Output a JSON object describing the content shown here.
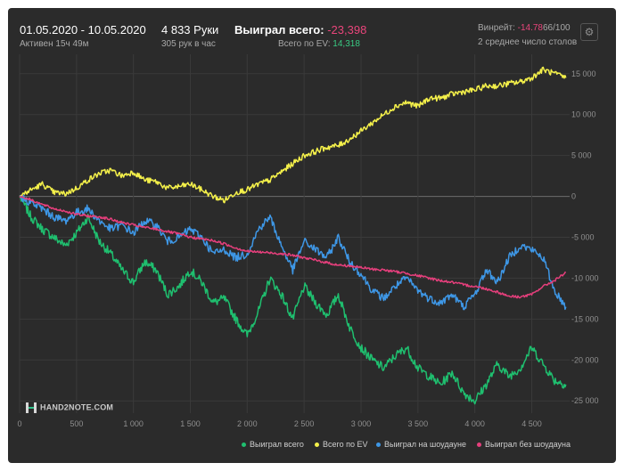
{
  "header": {
    "date_range": "01.05.2020 - 10.05.2020",
    "active": "Активен 15ч 49м",
    "hands": "4 833 Руки",
    "per_hour": "305 рук в час",
    "won_label": "Выиграл всего:",
    "won_value": "-23,398",
    "ev_label": "Всего по EV:",
    "ev_value": "14,318",
    "winrate_label": "Винрейт:",
    "winrate_value": "-14.78",
    "winrate_unit": "66/100",
    "tables": "2 среднее число столов"
  },
  "logo_text": "HAND2NOTE.COM",
  "settings_icon": "gear-icon",
  "colors": {
    "won": "#1fbf6f",
    "ev": "#f4f04a",
    "showdown": "#3e97e6",
    "non_showdown": "#e63f7c",
    "background": "#2b2b2b",
    "gridline": "#3a3a3a"
  },
  "chart_data": {
    "type": "line",
    "x_ticks": [
      "0",
      "500",
      "1 000",
      "1 500",
      "2 000",
      "2 500",
      "3 000",
      "3 500",
      "4 000",
      "4 500"
    ],
    "y_ticks": [
      "15 000",
      "10 000",
      "5 000",
      "0",
      "-5 000",
      "-10 000",
      "-15 000",
      "-20 000",
      "-25 000"
    ],
    "xlim": [
      0,
      4833
    ],
    "ylim": [
      -26500,
      16500
    ],
    "grid": true,
    "legend_position": "bottom",
    "series": [
      {
        "name": "Выиграл всего",
        "color": "#1fbf6f",
        "x": [
          0,
          100,
          200,
          300,
          400,
          500,
          600,
          700,
          800,
          900,
          1000,
          1100,
          1200,
          1300,
          1400,
          1500,
          1600,
          1700,
          1800,
          1900,
          2000,
          2100,
          2200,
          2300,
          2400,
          2500,
          2600,
          2700,
          2800,
          2900,
          3000,
          3100,
          3200,
          3300,
          3400,
          3500,
          3600,
          3700,
          3800,
          3900,
          4000,
          4100,
          4200,
          4300,
          4400,
          4500,
          4600,
          4700,
          4800
        ],
        "values": [
          0,
          -2500,
          -4000,
          -5000,
          -6000,
          -4500,
          -2500,
          -5500,
          -7000,
          -9000,
          -10500,
          -8000,
          -9000,
          -12000,
          -11000,
          -9000,
          -10500,
          -13000,
          -12500,
          -15000,
          -17000,
          -14000,
          -10000,
          -12000,
          -15000,
          -11000,
          -13000,
          -14500,
          -12000,
          -16000,
          -18500,
          -20000,
          -21000,
          -19500,
          -18500,
          -21000,
          -22000,
          -23000,
          -21500,
          -24000,
          -25000,
          -23000,
          -20500,
          -22000,
          -21000,
          -18500,
          -20500,
          -22500,
          -23000
        ]
      },
      {
        "name": "Всего по EV",
        "color": "#f4f04a",
        "x": [
          0,
          100,
          200,
          300,
          400,
          500,
          600,
          700,
          800,
          900,
          1000,
          1100,
          1200,
          1300,
          1400,
          1500,
          1600,
          1700,
          1800,
          1900,
          2000,
          2100,
          2200,
          2300,
          2400,
          2500,
          2600,
          2700,
          2800,
          2900,
          3000,
          3100,
          3200,
          3300,
          3400,
          3500,
          3600,
          3700,
          3800,
          3900,
          4000,
          4100,
          4200,
          4300,
          4400,
          4500,
          4600,
          4700,
          4800
        ],
        "values": [
          0,
          800,
          1500,
          500,
          300,
          1000,
          2000,
          2800,
          3200,
          2500,
          3000,
          2000,
          1800,
          1000,
          1200,
          1500,
          800,
          0,
          -500,
          500,
          800,
          1500,
          2000,
          3000,
          4000,
          5000,
          5500,
          6000,
          6200,
          7000,
          8000,
          9000,
          10000,
          11000,
          11500,
          11000,
          12000,
          12000,
          12500,
          12800,
          13000,
          13500,
          13500,
          13800,
          14000,
          14500,
          15500,
          15000,
          14500
        ]
      },
      {
        "name": "Выиграл на шоудауне",
        "color": "#3e97e6",
        "x": [
          0,
          100,
          200,
          300,
          400,
          500,
          600,
          700,
          800,
          900,
          1000,
          1100,
          1200,
          1300,
          1400,
          1500,
          1600,
          1700,
          1800,
          1900,
          2000,
          2100,
          2200,
          2300,
          2400,
          2500,
          2600,
          2700,
          2800,
          2900,
          3000,
          3100,
          3200,
          3300,
          3400,
          3500,
          3600,
          3700,
          3800,
          3900,
          4000,
          4100,
          4200,
          4300,
          4400,
          4500,
          4600,
          4700,
          4800
        ],
        "values": [
          0,
          -800,
          -1500,
          -2500,
          -3000,
          -2000,
          -1500,
          -3000,
          -4000,
          -3500,
          -4500,
          -3000,
          -3500,
          -5500,
          -5000,
          -4000,
          -5000,
          -7000,
          -6500,
          -7500,
          -7000,
          -4000,
          -2500,
          -6000,
          -9000,
          -5500,
          -6500,
          -7500,
          -5000,
          -8000,
          -9500,
          -11500,
          -12500,
          -11000,
          -10000,
          -11500,
          -12500,
          -13000,
          -12000,
          -13500,
          -12000,
          -9000,
          -10500,
          -7500,
          -6000,
          -6500,
          -7500,
          -11500,
          -13500
        ]
      },
      {
        "name": "Выиграл без шоудауна",
        "color": "#e63f7c",
        "x": [
          0,
          100,
          200,
          300,
          400,
          500,
          600,
          700,
          800,
          900,
          1000,
          1100,
          1200,
          1300,
          1400,
          1500,
          1600,
          1700,
          1800,
          1900,
          2000,
          2100,
          2200,
          2300,
          2400,
          2500,
          2600,
          2700,
          2800,
          2900,
          3000,
          3100,
          3200,
          3300,
          3400,
          3500,
          3600,
          3700,
          3800,
          3900,
          4000,
          4100,
          4200,
          4300,
          4400,
          4500,
          4600,
          4700,
          4800
        ],
        "values": [
          0,
          -400,
          -1000,
          -1500,
          -1800,
          -2200,
          -2400,
          -2500,
          -2800,
          -3200,
          -3500,
          -3800,
          -4000,
          -4300,
          -4600,
          -5000,
          -5200,
          -5400,
          -5800,
          -6300,
          -6700,
          -6800,
          -6900,
          -7000,
          -7200,
          -7500,
          -7800,
          -8100,
          -8400,
          -8500,
          -8700,
          -8900,
          -9000,
          -9200,
          -9400,
          -9700,
          -10000,
          -10300,
          -10500,
          -10800,
          -11000,
          -11300,
          -11700,
          -12200,
          -12300,
          -12000,
          -11000,
          -10300,
          -9300
        ]
      }
    ]
  }
}
